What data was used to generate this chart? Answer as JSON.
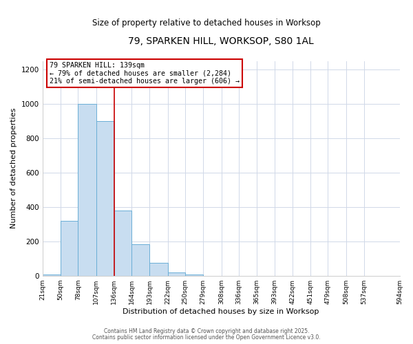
{
  "title": "79, SPARKEN HILL, WORKSOP, S80 1AL",
  "subtitle": "Size of property relative to detached houses in Worksop",
  "bar_heights": [
    5,
    320,
    1000,
    900,
    380,
    185,
    75,
    20,
    5,
    0,
    0,
    0,
    0,
    0,
    0,
    0,
    0,
    0,
    0
  ],
  "bin_edges": [
    21,
    50,
    78,
    107,
    136,
    164,
    193,
    222,
    250,
    279,
    308,
    336,
    365,
    393,
    422,
    451,
    479,
    508,
    537,
    594
  ],
  "bin_labels": [
    "21sqm",
    "50sqm",
    "78sqm",
    "107sqm",
    "136sqm",
    "164sqm",
    "193sqm",
    "222sqm",
    "250sqm",
    "279sqm",
    "308sqm",
    "336sqm",
    "365sqm",
    "393sqm",
    "422sqm",
    "451sqm",
    "479sqm",
    "508sqm",
    "537sqm",
    "594sqm"
  ],
  "bar_color": "#c8ddf0",
  "bar_edge_color": "#6aaed6",
  "vline_x": 136,
  "vline_color": "#cc0000",
  "xlabel": "Distribution of detached houses by size in Worksop",
  "ylabel": "Number of detached properties",
  "ylim": [
    0,
    1250
  ],
  "yticks": [
    0,
    200,
    400,
    600,
    800,
    1000,
    1200
  ],
  "annotation_title": "79 SPARKEN HILL: 139sqm",
  "annotation_line1": "← 79% of detached houses are smaller (2,284)",
  "annotation_line2": "21% of semi-detached houses are larger (606) →",
  "annotation_box_color": "#cc0000",
  "footer1": "Contains HM Land Registry data © Crown copyright and database right 2025.",
  "footer2": "Contains public sector information licensed under the Open Government Licence v3.0.",
  "background_color": "#ffffff",
  "grid_color": "#d0d8e8"
}
